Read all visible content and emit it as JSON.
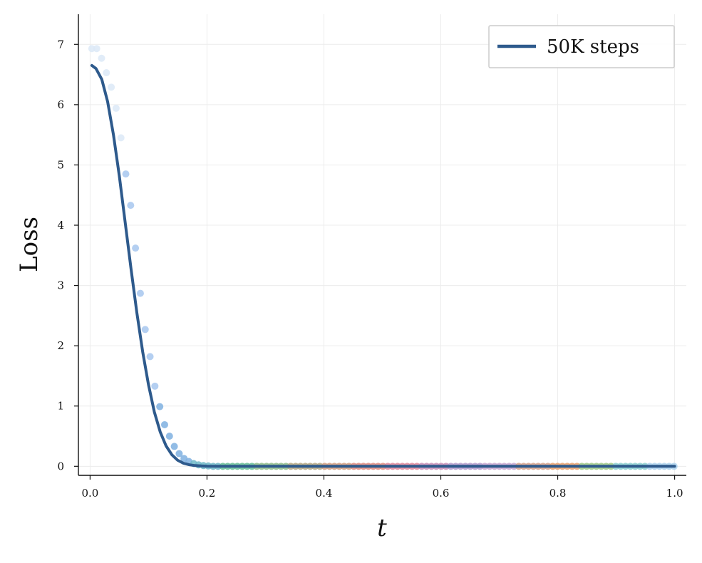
{
  "chart_data": {
    "type": "line",
    "title": "",
    "xlabel": "t",
    "ylabel": "Loss",
    "xlim": [
      -0.02,
      1.02
    ],
    "ylim": [
      -0.15,
      7.5
    ],
    "xticks": [
      0.0,
      0.2,
      0.4,
      0.6,
      0.8,
      1.0
    ],
    "xtick_labels": [
      "0.0",
      "0.2",
      "0.4",
      "0.6",
      "0.8",
      "1.0"
    ],
    "yticks": [
      0,
      1,
      2,
      3,
      4,
      5,
      6,
      7
    ],
    "ytick_labels": [
      "0",
      "1",
      "2",
      "3",
      "4",
      "5",
      "6",
      "7"
    ],
    "grid": true,
    "legend": {
      "placement": "top-right",
      "entries": [
        "50K steps"
      ]
    },
    "series": [
      {
        "name": "50K steps",
        "kind": "line",
        "color": "#2e5a8c",
        "x": [
          0.003,
          0.01,
          0.02,
          0.03,
          0.04,
          0.05,
          0.06,
          0.07,
          0.08,
          0.09,
          0.1,
          0.11,
          0.12,
          0.13,
          0.14,
          0.15,
          0.16,
          0.17,
          0.18,
          0.19,
          0.2,
          0.22,
          0.25,
          0.3,
          0.4,
          0.5,
          0.6,
          0.7,
          0.8,
          0.9,
          1.0
        ],
        "y": [
          6.65,
          6.6,
          6.42,
          6.05,
          5.5,
          4.82,
          4.05,
          3.28,
          2.55,
          1.9,
          1.35,
          0.9,
          0.57,
          0.34,
          0.19,
          0.1,
          0.05,
          0.025,
          0.012,
          0.006,
          0.003,
          0.0015,
          0.001,
          0.0,
          0.0,
          0.0,
          0.0,
          0.0,
          0.0,
          0.0,
          0.0
        ]
      },
      {
        "kind": "scatter",
        "x_start": 0.003,
        "x_step": 0.0083,
        "count": 121,
        "y_head": [
          6.93,
          6.93,
          6.77,
          6.53,
          6.29,
          5.94,
          5.45,
          4.85,
          4.33,
          3.62,
          2.87,
          2.27,
          1.82,
          1.33,
          0.99,
          0.69,
          0.5,
          0.33,
          0.21,
          0.13,
          0.08,
          0.045,
          0.025,
          0.012,
          0.006
        ],
        "y_tail": 0.0,
        "colors": [
          "#dce9f7",
          "#a7c7ee",
          "#7fb0e0",
          "#6fb8c8",
          "#67bf96",
          "#8fbd8a",
          "#b6a882",
          "#d49f80",
          "#e08c80",
          "#e0889b",
          "#c98fb7",
          "#b59ccc",
          "#c9a7d0",
          "#d7a38c",
          "#eaa16c",
          "#9fca86",
          "#8cd0d0",
          "#aed4ef"
        ]
      }
    ]
  }
}
